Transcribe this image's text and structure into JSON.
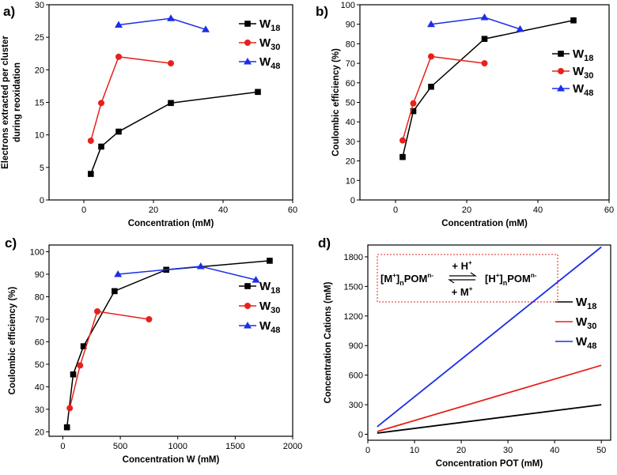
{
  "chart_data": [
    {
      "panel": "a)",
      "type": "line",
      "xlabel": "Concentration (mM)",
      "ylabel_lines": [
        "Electrons extracted per cluster",
        "during reoxidation"
      ],
      "xlim": [
        -10,
        60
      ],
      "ylim": [
        0,
        30
      ],
      "xticks": [
        0,
        20,
        40,
        60
      ],
      "yticks": [
        0,
        5,
        10,
        15,
        20,
        25,
        30
      ],
      "legend": "top-right",
      "series": [
        {
          "name": "W",
          "sub": "18",
          "marker": "square",
          "color": "#000000",
          "x": [
            2,
            5,
            10,
            25,
            50
          ],
          "y": [
            4.0,
            8.2,
            10.5,
            14.9,
            16.6
          ]
        },
        {
          "name": "W",
          "sub": "30",
          "marker": "circle",
          "color": "#e8201c",
          "x": [
            2,
            5,
            10,
            25
          ],
          "y": [
            9.1,
            14.9,
            22.0,
            21.0
          ]
        },
        {
          "name": "W",
          "sub": "48",
          "marker": "triangle",
          "color": "#1c2ee6",
          "x": [
            10,
            25,
            35
          ],
          "y": [
            26.9,
            27.9,
            26.2
          ]
        }
      ]
    },
    {
      "panel": "b)",
      "type": "line",
      "xlabel": "Concentration (mM)",
      "ylabel_lines": [
        "Coulombic efficiency (%)"
      ],
      "xlim": [
        -10,
        60
      ],
      "ylim": [
        0,
        100
      ],
      "xticks": [
        0,
        20,
        40,
        60
      ],
      "yticks": [
        0,
        10,
        20,
        30,
        40,
        50,
        60,
        70,
        80,
        90,
        100
      ],
      "legend": "right",
      "series": [
        {
          "name": "W",
          "sub": "18",
          "marker": "square",
          "color": "#000000",
          "x": [
            2,
            5,
            10,
            25,
            50
          ],
          "y": [
            22,
            45.5,
            58,
            82.5,
            92
          ]
        },
        {
          "name": "W",
          "sub": "30",
          "marker": "circle",
          "color": "#e8201c",
          "x": [
            2,
            5,
            10,
            25
          ],
          "y": [
            30.5,
            49.5,
            73.5,
            70
          ]
        },
        {
          "name": "W",
          "sub": "48",
          "marker": "triangle",
          "color": "#1c2ee6",
          "x": [
            10,
            25,
            35
          ],
          "y": [
            90,
            93.5,
            87.5
          ]
        }
      ]
    },
    {
      "panel": "c)",
      "type": "line",
      "xlabel": "Concentration W (mM)",
      "ylabel_lines": [
        "Coulombic efficiency (%)"
      ],
      "xlim": [
        -120,
        2000
      ],
      "ylim": [
        18,
        103
      ],
      "xticks": [
        0,
        500,
        1000,
        1500,
        2000
      ],
      "yticks": [
        20,
        30,
        40,
        50,
        60,
        70,
        80,
        90,
        100
      ],
      "legend": "right",
      "series": [
        {
          "name": "W",
          "sub": "18",
          "marker": "square",
          "color": "#000000",
          "x": [
            36,
            90,
            180,
            450,
            900,
            1800
          ],
          "y": [
            22,
            45.5,
            58,
            82.5,
            92,
            96
          ]
        },
        {
          "name": "W",
          "sub": "30",
          "marker": "circle",
          "color": "#e8201c",
          "x": [
            60,
            150,
            300,
            750
          ],
          "y": [
            30.5,
            49.5,
            73.5,
            70
          ]
        },
        {
          "name": "W",
          "sub": "48",
          "marker": "triangle",
          "color": "#1c2ee6",
          "x": [
            480,
            1200,
            1680
          ],
          "y": [
            90,
            93.5,
            87.5
          ]
        }
      ]
    },
    {
      "panel": "d)",
      "type": "line",
      "xlabel": "Concentration POT (mM)",
      "ylabel_lines": [
        "Concentration Cations (mM)"
      ],
      "xlim": [
        0,
        52
      ],
      "ylim": [
        -60,
        1920
      ],
      "xticks": [
        0,
        10,
        20,
        30,
        40,
        50
      ],
      "yticks": [
        0,
        300,
        600,
        900,
        1200,
        1500,
        1800
      ],
      "legend": "right",
      "series": [
        {
          "name": "W",
          "sub": "18",
          "marker": "none",
          "color": "#000000",
          "x": [
            2,
            50
          ],
          "y": [
            12,
            300
          ]
        },
        {
          "name": "W",
          "sub": "30",
          "marker": "none",
          "color": "#e8201c",
          "x": [
            2,
            50
          ],
          "y": [
            28,
            700
          ]
        },
        {
          "name": "W",
          "sub": "48",
          "marker": "none",
          "color": "#1c2ee6",
          "x": [
            2,
            50
          ],
          "y": [
            77,
            1900
          ]
        }
      ],
      "annotation": {
        "left_pre": "[M",
        "left_sup1": "+",
        "left_mid": "]",
        "left_sub": "n",
        "left_post": "POM",
        "left_sup2": "n-",
        "top": "+ H",
        "top_sup": "+",
        "bottom": "+ M",
        "bottom_sup": "+",
        "right_pre": "[H",
        "right_sup1": "+",
        "right_mid": "]",
        "right_sub": "n",
        "right_post": "POM",
        "right_sup2": "n-"
      }
    }
  ]
}
